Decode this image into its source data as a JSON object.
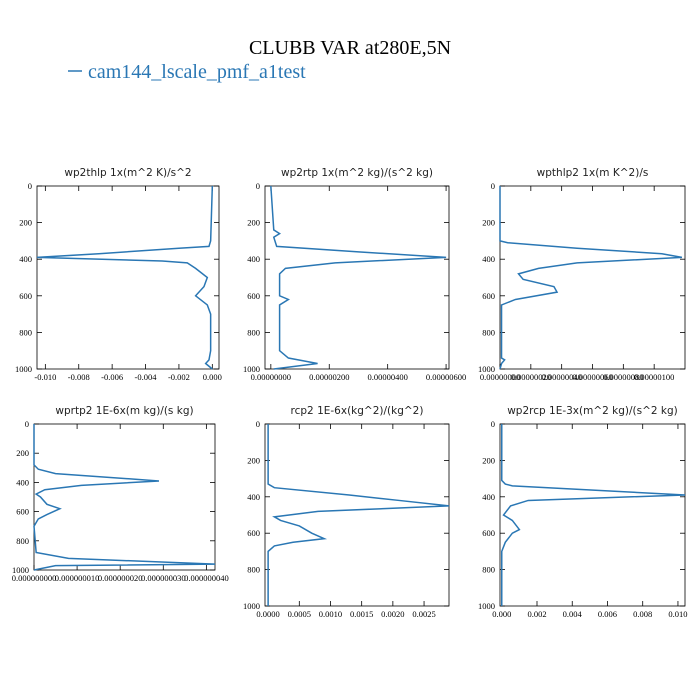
{
  "title": "CLUBB VAR at280E,5N",
  "legend": [
    {
      "name": "cam144_lscale_pmf_a1test",
      "color": "#2a77b4"
    }
  ],
  "chart_data": [
    {
      "type": "line",
      "title": "wp2thlp  1x(m^2 K)/s^2",
      "color": "#2a77b4",
      "xlim": [
        -0.0105,
        0.0004
      ],
      "xticks": [
        {
          "value": -0.01,
          "label": "-0.010"
        },
        {
          "value": -0.008,
          "label": "-0.008"
        },
        {
          "value": -0.006,
          "label": "-0.006"
        },
        {
          "value": -0.004,
          "label": "-0.004"
        },
        {
          "value": -0.002,
          "label": "-0.002"
        },
        {
          "value": 0,
          "label": "0.000"
        }
      ],
      "ylim": [
        1000,
        0
      ],
      "yticks": [
        0,
        200,
        400,
        600,
        800,
        1000
      ],
      "y": [
        0,
        300,
        330,
        340,
        370,
        390,
        410,
        420,
        450,
        500,
        550,
        600,
        650,
        700,
        900,
        950,
        970,
        1000
      ],
      "values": [
        0,
        -0.0001,
        -0.0002,
        -0.002,
        -0.0068,
        -0.0105,
        -0.003,
        -0.0015,
        -0.001,
        -0.0003,
        -0.0005,
        -0.001,
        -0.0003,
        -0.0001,
        -0.0001,
        -0.0002,
        -0.0004,
        0
      ]
    },
    {
      "type": "line",
      "title": "wp2rtp  1x(m^2 kg)/(s^2 kg)",
      "color": "#2a77b4",
      "xlim": [
        -2e-07,
        6.1e-06
      ],
      "xticks": [
        {
          "value": 0,
          "label": "0.00000000"
        },
        {
          "value": 2e-06,
          "label": "0.00000200"
        },
        {
          "value": 4e-06,
          "label": "0.00000400"
        },
        {
          "value": 6e-06,
          "label": "0.00000600"
        }
      ],
      "ylim": [
        1000,
        0
      ],
      "yticks": [
        0,
        200,
        400,
        600,
        800,
        1000
      ],
      "y": [
        0,
        240,
        260,
        280,
        330,
        360,
        390,
        420,
        450,
        480,
        600,
        620,
        650,
        900,
        940,
        970,
        1000
      ],
      "values": [
        0,
        1e-07,
        3e-07,
        1e-07,
        2e-07,
        3e-06,
        6e-06,
        2.2e-06,
        5e-07,
        3e-07,
        3e-07,
        6e-07,
        3e-07,
        3e-07,
        6e-07,
        1.6e-06,
        1e-07
      ]
    },
    {
      "type": "line",
      "title": "wpthlp2  1x(m K^2)/s",
      "color": "#2a77b4",
      "xlim": [
        0,
        1.2e-06
      ],
      "xticks": [
        {
          "value": 0,
          "label": "0.00000000"
        },
        {
          "value": 2e-07,
          "label": "0.00000020"
        },
        {
          "value": 4e-07,
          "label": "0.00000040"
        },
        {
          "value": 6e-07,
          "label": "0.00000060"
        },
        {
          "value": 8e-07,
          "label": "0.00000080"
        },
        {
          "value": 1e-06,
          "label": "0.00000100"
        }
      ],
      "ylim": [
        1000,
        0
      ],
      "yticks": [
        0,
        200,
        400,
        600,
        800,
        1000
      ],
      "y": [
        0,
        300,
        310,
        340,
        370,
        390,
        420,
        450,
        480,
        510,
        550,
        580,
        620,
        650,
        940,
        950,
        970,
        1000
      ],
      "values": [
        0,
        0,
        5e-08,
        5e-07,
        1.05e-06,
        1.18e-06,
        5e-07,
        2.5e-07,
        1.2e-07,
        1.5e-07,
        3.5e-07,
        3.7e-07,
        1e-07,
        1e-08,
        1e-08,
        3e-08,
        1e-08,
        0
      ]
    },
    {
      "type": "line",
      "title": "wprtp2  1E-6x(m kg)/(s kg)",
      "color": "#2a77b4",
      "xlim": [
        0,
        4.2e-08
      ],
      "xticks": [
        {
          "value": 0,
          "label": "0.000000000"
        },
        {
          "value": 1e-08,
          "label": "0.000000010"
        },
        {
          "value": 2e-08,
          "label": "0.000000020"
        },
        {
          "value": 3e-08,
          "label": "0.000000030"
        },
        {
          "value": 4e-08,
          "label": "0.000000040"
        }
      ],
      "ylim": [
        1000,
        0
      ],
      "yticks": [
        0,
        200,
        400,
        600,
        800,
        1000
      ],
      "y": [
        0,
        280,
        310,
        340,
        390,
        420,
        450,
        480,
        500,
        550,
        580,
        620,
        650,
        700,
        880,
        920,
        960,
        970,
        1000
      ],
      "values": [
        0,
        0,
        1e-09,
        5e-09,
        2.9e-08,
        1.1e-08,
        2.5e-09,
        5e-10,
        1.5e-09,
        3e-09,
        6e-09,
        3e-09,
        1e-09,
        0,
        5e-10,
        8e-09,
        4.2e-08,
        5e-09,
        0
      ]
    },
    {
      "type": "line",
      "title": "rcp2  1E-6x(kg^2)/(kg^2)",
      "color": "#2a77b4",
      "xlim": [
        -5e-05,
        0.0029
      ],
      "xticks": [
        {
          "value": 0,
          "label": "0.0000"
        },
        {
          "value": 0.0005,
          "label": "0.0005"
        },
        {
          "value": 0.001,
          "label": "0.0010"
        },
        {
          "value": 0.0015,
          "label": "0.0015"
        },
        {
          "value": 0.002,
          "label": "0.0020"
        },
        {
          "value": 0.0025,
          "label": "0.0025"
        }
      ],
      "ylim": [
        1000,
        0
      ],
      "yticks": [
        0,
        200,
        400,
        600,
        800,
        1000
      ],
      "y": [
        0,
        330,
        350,
        390,
        420,
        450,
        480,
        510,
        530,
        560,
        600,
        630,
        650,
        670,
        700,
        950,
        1000
      ],
      "values": [
        0,
        0,
        0.0001,
        0.0013,
        0.0021,
        0.0029,
        0.0008,
        0.0001,
        0.0002,
        0.0005,
        0.0007,
        0.0009,
        0.0004,
        0.0001,
        0,
        0,
        0
      ]
    },
    {
      "type": "line",
      "title": "wp2rcp  1E-3x(m^2 kg)/(s^2 kg)",
      "color": "#2a77b4",
      "xlim": [
        -0.0001,
        0.0104
      ],
      "xticks": [
        {
          "value": 0,
          "label": "0.000"
        },
        {
          "value": 0.002,
          "label": "0.002"
        },
        {
          "value": 0.004,
          "label": "0.004"
        },
        {
          "value": 0.006,
          "label": "0.006"
        },
        {
          "value": 0.008,
          "label": "0.008"
        },
        {
          "value": 0.01,
          "label": "0.010"
        }
      ],
      "ylim": [
        1000,
        0
      ],
      "yticks": [
        0,
        200,
        400,
        600,
        800,
        1000
      ],
      "y": [
        0,
        310,
        330,
        340,
        390,
        420,
        450,
        500,
        530,
        580,
        600,
        650,
        700,
        1000
      ],
      "values": [
        0,
        0,
        0.0002,
        0.0006,
        0.0104,
        0.0015,
        0.0005,
        0.0001,
        0.0006,
        0.001,
        0.0006,
        0.0002,
        0,
        0
      ]
    }
  ]
}
